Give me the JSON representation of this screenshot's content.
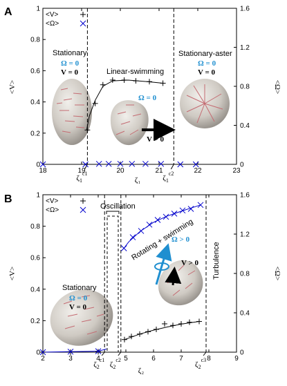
{
  "chart_data": [
    {
      "panel": "A",
      "type": "scatter",
      "xlabel": "ζ₁",
      "ylabel": "<V>",
      "ylabel_right": "<Ω>",
      "xlim": [
        18,
        23
      ],
      "ylim": [
        0,
        1
      ],
      "ylim_right": [
        0,
        1.6
      ],
      "x_ticks": [
        "18",
        "19",
        "20",
        "21",
        "22",
        "23"
      ],
      "y_ticks": [
        "0",
        "0.2",
        "0.4",
        "0.6",
        "0.8",
        "1"
      ],
      "y_ticks_right": [
        "0",
        "0.4",
        "0.8",
        "1.2",
        "1.6"
      ],
      "legend": {
        "placement": "top-left",
        "entries": [
          "<V>",
          "<Ω>"
        ]
      },
      "series": [
        {
          "name": "<V>",
          "marker": "+",
          "color": "#000000",
          "points": [
            [
              19.15,
              0.22
            ],
            [
              19.35,
              0.39
            ],
            [
              19.55,
              0.51
            ],
            [
              19.8,
              0.54
            ],
            [
              20.1,
              0.54
            ],
            [
              20.4,
              0.535
            ],
            [
              20.75,
              0.53
            ],
            [
              21.1,
              0.52
            ]
          ],
          "fit": [
            [
              19.13,
              0.22
            ],
            [
              19.2,
              0.31
            ],
            [
              19.35,
              0.41
            ],
            [
              19.55,
              0.5
            ],
            [
              19.8,
              0.535
            ],
            [
              20.2,
              0.54
            ],
            [
              20.7,
              0.53
            ],
            [
              21.1,
              0.52
            ]
          ]
        },
        {
          "name": "<Ω>",
          "marker": "x",
          "color": "#0000cc",
          "points": [
            [
              18.0,
              0
            ],
            [
              19.1,
              0
            ],
            [
              19.45,
              0.003
            ],
            [
              19.7,
              0.003
            ],
            [
              20.0,
              0.003
            ],
            [
              20.3,
              0.003
            ],
            [
              20.65,
              0.003
            ],
            [
              21.05,
              0.003
            ],
            [
              21.55,
              0
            ],
            [
              21.95,
              0
            ]
          ]
        }
      ],
      "thresholds": [
        {
          "x": 19.15,
          "label_base": "ζ",
          "label_sub": "1",
          "label_sup": "c1"
        },
        {
          "x": 21.38,
          "label_base": "ζ",
          "label_sub": "1",
          "label_sup": "c2"
        }
      ],
      "regions": [
        {
          "label": "Stationary",
          "omega": "Ω = 0",
          "v": "V = 0"
        },
        {
          "label": "Linear-swimming",
          "omega": "Ω = 0",
          "v": "V > 0"
        },
        {
          "label": "Stationary-aster",
          "omega": "Ω = 0",
          "v": "V = 0"
        }
      ]
    },
    {
      "panel": "B",
      "type": "scatter",
      "xlabel": "ζ₂",
      "ylabel": "<V>",
      "ylabel_right": "<Ω>",
      "xlim": [
        2,
        9
      ],
      "ylim": [
        0,
        1
      ],
      "ylim_right": [
        0,
        1.6
      ],
      "x_ticks": [
        "2",
        "3",
        "4",
        "5",
        "6",
        "7",
        "8",
        "9"
      ],
      "y_ticks": [
        "0",
        "0.2",
        "0.4",
        "0.6",
        "0.8",
        "1"
      ],
      "y_ticks_right": [
        "0",
        "0.4",
        "0.8",
        "1.2",
        "1.6"
      ],
      "legend": {
        "placement": "top-left",
        "entries": [
          "<V>",
          "<Ω>"
        ]
      },
      "series": [
        {
          "name": "<V>",
          "marker": "+",
          "color": "#000000",
          "points": [
            [
              2,
              0
            ],
            [
              3,
              0
            ],
            [
              4,
              0.003
            ],
            [
              4.95,
              0.08
            ],
            [
              5.2,
              0.1
            ],
            [
              5.5,
              0.115
            ],
            [
              5.8,
              0.13
            ],
            [
              6.1,
              0.145
            ],
            [
              6.4,
              0.18
            ],
            [
              6.7,
              0.17
            ],
            [
              7.0,
              0.18
            ],
            [
              7.3,
              0.19
            ],
            [
              7.65,
              0.195
            ]
          ],
          "fit": [
            [
              4.95,
              0.08
            ],
            [
              5.5,
              0.115
            ],
            [
              6.0,
              0.14
            ],
            [
              6.5,
              0.16
            ],
            [
              7.0,
              0.178
            ],
            [
              7.65,
              0.195
            ]
          ]
        },
        {
          "name": "<Ω>",
          "marker": "x",
          "color": "#0000cc",
          "points": [
            [
              2,
              0
            ],
            [
              3,
              0.003
            ],
            [
              4,
              0.006
            ],
            [
              4.93,
              0.66
            ],
            [
              5.25,
              0.73
            ],
            [
              5.55,
              0.77
            ],
            [
              5.85,
              0.81
            ],
            [
              6.15,
              0.84
            ],
            [
              6.45,
              0.86
            ],
            [
              6.75,
              0.88
            ],
            [
              7.05,
              0.9
            ],
            [
              7.35,
              0.91
            ],
            [
              7.7,
              0.935
            ]
          ],
          "fit": [
            [
              4.93,
              0.66
            ],
            [
              5.1,
              0.7
            ],
            [
              5.5,
              0.765
            ],
            [
              6.0,
              0.825
            ],
            [
              6.5,
              0.865
            ],
            [
              7.0,
              0.895
            ],
            [
              7.7,
              0.935
            ]
          ],
          "base_fit": [
            [
              2,
              0
            ],
            [
              3,
              0.003
            ],
            [
              4,
              0.006
            ],
            [
              4.3,
              0.02
            ]
          ]
        }
      ],
      "thresholds": [
        {
          "x": 4.23,
          "label_base": "ζ",
          "label_sub": "2",
          "label_sup": "c1"
        },
        {
          "x": 4.82,
          "label_base": "ζ",
          "label_sub": "2",
          "label_sup": "c2"
        },
        {
          "x": 7.9,
          "label_base": "ζ",
          "label_sub": "2",
          "label_sup": "c3"
        }
      ],
      "regions": [
        {
          "label": "Stationary",
          "omega": "Ω = 0",
          "v": "V = 0"
        },
        {
          "label": "Oscillation"
        },
        {
          "label": "Rotating + swimming",
          "omega": "Ω > 0",
          "v": "V > 0"
        },
        {
          "label": "Turbulence"
        }
      ]
    }
  ]
}
